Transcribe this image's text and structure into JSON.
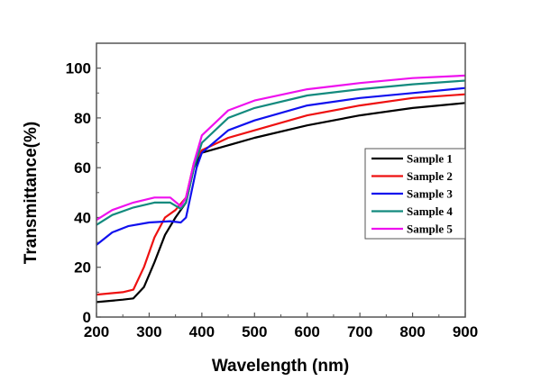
{
  "chart_data": {
    "type": "line",
    "title": "",
    "xlabel": "Wavelength (nm)",
    "ylabel": "Transmittance(%)",
    "xlim": [
      200,
      900
    ],
    "ylim": [
      0,
      110
    ],
    "xticks": [
      200,
      300,
      400,
      500,
      600,
      700,
      800,
      900
    ],
    "yticks": [
      0,
      20,
      40,
      60,
      80,
      100
    ],
    "grid": false,
    "legend_position": "center-right",
    "series": [
      {
        "name": "Sample 1",
        "color": "#000000",
        "x": [
          200,
          250,
          270,
          290,
          310,
          330,
          350,
          370,
          385,
          400,
          450,
          500,
          600,
          700,
          800,
          900
        ],
        "y": [
          6,
          7,
          7.5,
          12,
          22,
          33,
          40,
          46,
          60,
          66,
          69,
          72,
          77,
          81,
          84,
          86
        ]
      },
      {
        "name": "Sample 2",
        "color": "#ee1111",
        "x": [
          200,
          250,
          270,
          290,
          310,
          330,
          350,
          370,
          385,
          400,
          450,
          500,
          600,
          700,
          800,
          900
        ],
        "y": [
          9,
          10,
          11,
          20,
          32,
          40,
          43,
          48,
          62,
          67,
          72,
          75,
          81,
          85,
          88,
          89.5
        ]
      },
      {
        "name": "Sample 3",
        "color": "#1010ee",
        "x": [
          200,
          230,
          260,
          300,
          340,
          360,
          370,
          380,
          390,
          400,
          450,
          500,
          600,
          700,
          800,
          900
        ],
        "y": [
          29,
          34,
          36.5,
          38,
          38.5,
          38,
          40,
          50,
          60,
          66,
          75,
          79,
          85,
          88,
          90,
          92
        ]
      },
      {
        "name": "Sample 4",
        "color": "#138a7e",
        "x": [
          200,
          230,
          270,
          310,
          340,
          360,
          370,
          385,
          400,
          450,
          500,
          600,
          700,
          800,
          900
        ],
        "y": [
          37,
          41,
          44,
          46,
          46,
          43.5,
          46,
          60,
          70,
          80,
          84,
          89,
          91.5,
          93.5,
          95
        ]
      },
      {
        "name": "Sample 5",
        "color": "#ee11ee",
        "x": [
          200,
          230,
          270,
          310,
          340,
          360,
          370,
          385,
          400,
          450,
          500,
          600,
          700,
          800,
          900
        ],
        "y": [
          39,
          43,
          46,
          48,
          48,
          44.5,
          48,
          62,
          73,
          83,
          87,
          91.5,
          94,
          96,
          97
        ]
      }
    ]
  }
}
